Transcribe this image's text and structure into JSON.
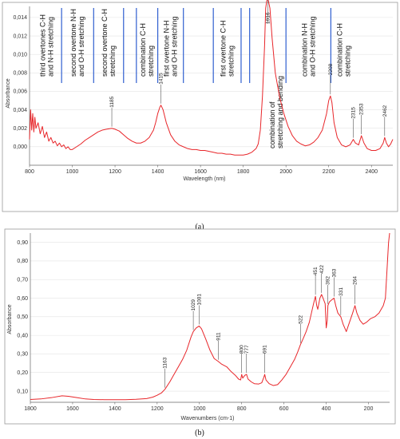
{
  "chart_data": [
    {
      "type": "line",
      "panel_label": "(a)",
      "xlabel": "Wavelength (nm)",
      "ylabel": "Absorbance",
      "xlim": [
        800,
        2500
      ],
      "ylim": [
        -0.002,
        0.0152
      ],
      "x_ticks": [
        800,
        1000,
        1200,
        1400,
        1600,
        1800,
        2000,
        2200,
        2400
      ],
      "x_tick_labels": [
        "800",
        "1000",
        "1200",
        "1400",
        "1600",
        "1800",
        "2000",
        "2200",
        "2400"
      ],
      "y_ticks": [
        0,
        0.002,
        0.004,
        0.006,
        0.008,
        0.01,
        0.012,
        0.014
      ],
      "y_tick_labels": [
        "0,000",
        "0,002",
        "0,004",
        "0,006",
        "0,008",
        "0,010",
        "0,012",
        "0,014"
      ],
      "color": "#e8262a",
      "series": [
        {
          "x": [
            800,
            805,
            810,
            815,
            820,
            825,
            830,
            840,
            850,
            860,
            870,
            880,
            890,
            900,
            910,
            920,
            930,
            940,
            950,
            960,
            970,
            980,
            990,
            1000,
            1020,
            1040,
            1060,
            1080,
            1100,
            1120,
            1140,
            1160,
            1185,
            1200,
            1220,
            1240,
            1260,
            1280,
            1300,
            1320,
            1340,
            1360,
            1380,
            1390,
            1400,
            1410,
            1415,
            1425,
            1440,
            1460,
            1480,
            1500,
            1520,
            1540,
            1560,
            1580,
            1600,
            1620,
            1640,
            1660,
            1680,
            1700,
            1720,
            1740,
            1760,
            1780,
            1800,
            1820,
            1840,
            1860,
            1870,
            1880,
            1890,
            1900,
            1905,
            1910,
            1916,
            1925,
            1935,
            1950,
            1970,
            1990,
            2010,
            2030,
            2050,
            2070,
            2090,
            2110,
            2130,
            2150,
            2170,
            2190,
            2200,
            2208,
            2215,
            2225,
            2240,
            2260,
            2280,
            2300,
            2315,
            2325,
            2340,
            2353,
            2365,
            2380,
            2400,
            2420,
            2440,
            2455,
            2462,
            2470,
            2480,
            2490,
            2500
          ],
          "y": [
            0.0008,
            0.004,
            0.0018,
            0.0036,
            0.0016,
            0.0032,
            0.002,
            0.0026,
            0.0014,
            0.0022,
            0.001,
            0.0016,
            0.0006,
            0.001,
            0.0004,
            0.0006,
            0.0001,
            0.0004,
            0.0,
            0.0002,
            -0.0002,
            0.0,
            -0.0003,
            -0.0003,
            0.0,
            0.0003,
            0.0007,
            0.001,
            0.0013,
            0.0016,
            0.0018,
            0.0019,
            0.002,
            0.0019,
            0.0017,
            0.0013,
            0.0009,
            0.0006,
            0.0004,
            0.0004,
            0.0006,
            0.001,
            0.0018,
            0.0026,
            0.0036,
            0.0043,
            0.0045,
            0.004,
            0.0026,
            0.0013,
            0.0006,
            0.0002,
            0.0,
            -0.0002,
            -0.0003,
            -0.0003,
            -0.0004,
            -0.0004,
            -0.0005,
            -0.0006,
            -0.0007,
            -0.0007,
            -0.0008,
            -0.0008,
            -0.0009,
            -0.0009,
            -0.0009,
            -0.0008,
            -0.0006,
            -0.0002,
            0.0003,
            0.0018,
            0.0055,
            0.011,
            0.015,
            0.0158,
            0.016,
            0.015,
            0.0118,
            0.008,
            0.0054,
            0.0036,
            0.0022,
            0.0012,
            0.0006,
            0.0003,
            0.0001,
            0.0002,
            0.0005,
            0.001,
            0.0018,
            0.0036,
            0.005,
            0.0055,
            0.0048,
            0.0026,
            0.001,
            0.0002,
            0.0,
            0.0002,
            0.0008,
            0.0004,
            0.0002,
            0.0012,
            0.0004,
            -0.0002,
            -0.0004,
            -0.0004,
            -0.0002,
            0.0004,
            0.001,
            0.0004,
            0.0,
            0.0003,
            0.0008
          ]
        }
      ],
      "peak_labels": [
        {
          "x": 1185,
          "text": "1185"
        },
        {
          "x": 1415,
          "text": "1415"
        },
        {
          "x": 1916,
          "text": "1916"
        },
        {
          "x": 2208,
          "text": "2208"
        },
        {
          "x": 2315,
          "text": "2315"
        },
        {
          "x": 2353,
          "text": "2353"
        },
        {
          "x": 2462,
          "text": "2462"
        }
      ],
      "band_dividers_nm": [
        950,
        1100,
        1240,
        1300,
        1400,
        1520,
        1660,
        1790,
        1830,
        2000,
        2210
      ],
      "band_annotations": [
        {
          "x_center": 880,
          "lines": [
            "third overtones C-H",
            "and N-H stretching"
          ]
        },
        {
          "x_center": 1025,
          "lines": [
            "second overtone N-H",
            "and O-H stretching"
          ]
        },
        {
          "x_center": 1170,
          "lines": [
            "second overtone C-H",
            "stretching"
          ]
        },
        {
          "x_center": 1350,
          "lines": [
            "combination C-H",
            "stretching"
          ]
        },
        {
          "x_center": 1460,
          "lines": [
            "first overtone N-H",
            "and O-H stretching"
          ]
        },
        {
          "x_center": 1725,
          "lines": [
            "first overtone C-H",
            "stretching"
          ]
        },
        {
          "x_center": 1955,
          "lines": [
            "combination of",
            "stretching and bending"
          ]
        },
        {
          "x_center": 2105,
          "lines": [
            "combination N-H",
            "and O-H stretching"
          ]
        },
        {
          "x_center": 2270,
          "lines": [
            "combination C-H",
            "stretching"
          ]
        }
      ]
    },
    {
      "type": "line",
      "panel_label": "(b)",
      "xlabel": "Wavenumbers (cm-1)",
      "ylabel": "Absorbance",
      "xlim": [
        1800,
        100
      ],
      "ylim": [
        0.04,
        0.95
      ],
      "x_ticks": [
        1800,
        1600,
        1400,
        1200,
        1000,
        800,
        600,
        400,
        200
      ],
      "x_tick_labels": [
        "1800",
        "1600",
        "1400",
        "1200",
        "1000",
        "800",
        "600",
        "400",
        "200"
      ],
      "y_ticks": [
        0.1,
        0.2,
        0.3,
        0.4,
        0.5,
        0.6,
        0.7,
        0.8,
        0.9
      ],
      "y_tick_labels": [
        "0,10",
        "0,20",
        "0,30",
        "0,40",
        "0,50",
        "0,60",
        "0,70",
        "0,80",
        "0,90"
      ],
      "color": "#e8262a",
      "series": [
        {
          "x": [
            1800,
            1750,
            1700,
            1650,
            1620,
            1580,
            1540,
            1500,
            1450,
            1400,
            1350,
            1300,
            1250,
            1220,
            1200,
            1180,
            1163,
            1140,
            1120,
            1100,
            1080,
            1060,
            1040,
            1029,
            1015,
            1001,
            990,
            970,
            950,
            930,
            911,
            895,
            870,
            850,
            830,
            815,
            805,
            800,
            795,
            785,
            777,
            770,
            755,
            740,
            720,
            705,
            695,
            691,
            685,
            670,
            650,
            630,
            610,
            590,
            570,
            550,
            535,
            522,
            510,
            495,
            480,
            470,
            460,
            451,
            445,
            440,
            430,
            422,
            415,
            405,
            400,
            395,
            392,
            385,
            375,
            363,
            355,
            345,
            331,
            320,
            305,
            290,
            275,
            264,
            255,
            240,
            225,
            210,
            190,
            170,
            150,
            130,
            120,
            115,
            110,
            105,
            100
          ],
          "y": [
            0.055,
            0.058,
            0.065,
            0.075,
            0.072,
            0.065,
            0.058,
            0.055,
            0.054,
            0.054,
            0.054,
            0.056,
            0.06,
            0.068,
            0.078,
            0.09,
            0.11,
            0.15,
            0.19,
            0.23,
            0.27,
            0.32,
            0.39,
            0.42,
            0.44,
            0.45,
            0.435,
            0.38,
            0.32,
            0.275,
            0.26,
            0.245,
            0.23,
            0.205,
            0.185,
            0.165,
            0.16,
            0.19,
            0.17,
            0.185,
            0.19,
            0.165,
            0.15,
            0.14,
            0.138,
            0.145,
            0.175,
            0.19,
            0.16,
            0.14,
            0.13,
            0.135,
            0.16,
            0.19,
            0.23,
            0.27,
            0.31,
            0.35,
            0.38,
            0.42,
            0.47,
            0.52,
            0.57,
            0.61,
            0.56,
            0.54,
            0.6,
            0.62,
            0.6,
            0.57,
            0.44,
            0.48,
            0.56,
            0.58,
            0.59,
            0.6,
            0.56,
            0.52,
            0.5,
            0.46,
            0.42,
            0.47,
            0.52,
            0.56,
            0.52,
            0.48,
            0.46,
            0.47,
            0.49,
            0.5,
            0.52,
            0.56,
            0.6,
            0.7,
            0.8,
            0.9,
            0.95
          ]
        }
      ],
      "peak_labels": [
        {
          "x": 1163,
          "text": "1163"
        },
        {
          "x": 1029,
          "text": "1029"
        },
        {
          "x": 1001,
          "text": "1001"
        },
        {
          "x": 911,
          "text": "911"
        },
        {
          "x": 800,
          "text": "800"
        },
        {
          "x": 777,
          "text": "777"
        },
        {
          "x": 691,
          "text": "691"
        },
        {
          "x": 522,
          "text": "522"
        },
        {
          "x": 451,
          "text": "451"
        },
        {
          "x": 422,
          "text": "422"
        },
        {
          "x": 392,
          "text": "392"
        },
        {
          "x": 363,
          "text": "363"
        },
        {
          "x": 331,
          "text": "331"
        },
        {
          "x": 264,
          "text": "264"
        }
      ]
    }
  ]
}
